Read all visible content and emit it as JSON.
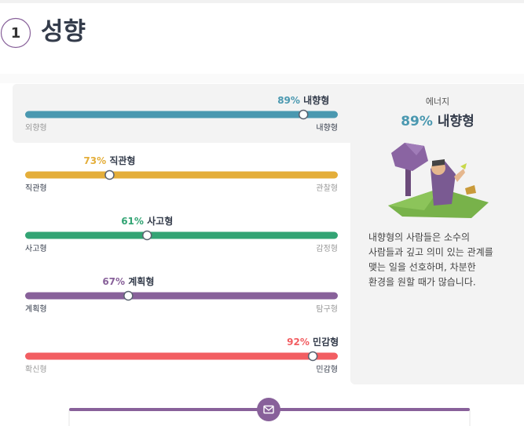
{
  "header": {
    "number": "1",
    "title": "성향"
  },
  "traits": [
    {
      "percent": 89,
      "percent_label": "89%",
      "trait": "내향형",
      "left": "외향형",
      "right": "내향형",
      "side": "right",
      "color": "#4a98b0"
    },
    {
      "percent": 73,
      "percent_label": "73%",
      "trait": "직관형",
      "left": "직관형",
      "right": "관찰형",
      "side": "left",
      "color": "#e4ae3a"
    },
    {
      "percent": 61,
      "percent_label": "61%",
      "trait": "사고형",
      "left": "사고형",
      "right": "감정형",
      "side": "left",
      "color": "#33a474"
    },
    {
      "percent": 67,
      "percent_label": "67%",
      "trait": "계획형",
      "left": "계획형",
      "right": "탐구형",
      "side": "left",
      "color": "#88619a"
    },
    {
      "percent": 92,
      "percent_label": "92%",
      "trait": "민감형",
      "left": "확신형",
      "right": "민감형",
      "side": "right",
      "color": "#f25e62"
    }
  ],
  "panel": {
    "heading": "에너지",
    "percent_label": "89%",
    "trait": "내향형",
    "color": "#4a98b0",
    "description": [
      "내향형의 사람들은 소수의",
      "사람들과 깊고 의미 있는 관계를",
      "맺는 일을 선호하며, 차분한",
      "환경을 원할 때가 많습니다."
    ]
  }
}
